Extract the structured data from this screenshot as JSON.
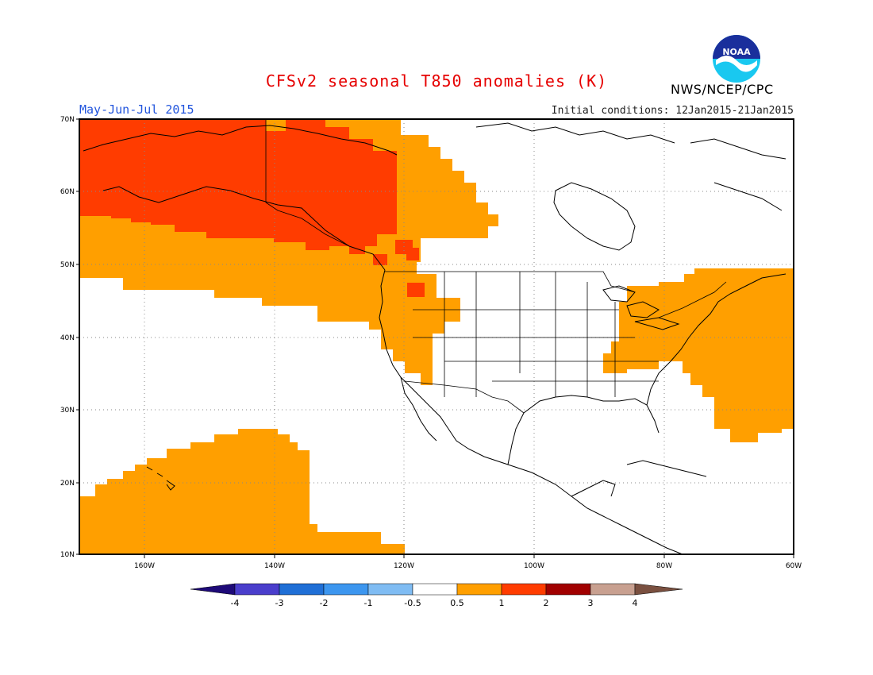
{
  "header": {
    "title": "CFSv2 seasonal T850 anomalies (K)",
    "period": "May-Jun-Jul 2015",
    "initial_conditions": "Initial conditions: 12Jan2015-21Jan2015",
    "agency": "NWS/NCEP/CPC",
    "logo_text": "NOAA"
  },
  "map": {
    "lon_range": [
      -172,
      -60
    ],
    "lat_range": [
      10,
      70
    ],
    "lat_ticks": [
      "10N",
      "20N",
      "30N",
      "40N",
      "50N",
      "60N",
      "70N"
    ],
    "lon_ticks": [
      "160W",
      "140W",
      "120W",
      "100W",
      "80W",
      "60W"
    ],
    "gridlines": "dotted"
  },
  "colorbar": {
    "labels": [
      "-4",
      "-3",
      "-2",
      "-1",
      "-0.5",
      "0.5",
      "1",
      "2",
      "3",
      "4"
    ],
    "colors": [
      "#1e0a78",
      "#4a3ecc",
      "#1f6fd6",
      "#3c96ef",
      "#7fbcf3",
      "#ffffff",
      "#ff9f00",
      "#ff3c00",
      "#a10000",
      "#c8a090",
      "#7a5040"
    ]
  },
  "legend_colors": {
    "warm_1": "#ff9f00",
    "warm_2": "#ff3c00",
    "land_outline": "#000000"
  }
}
